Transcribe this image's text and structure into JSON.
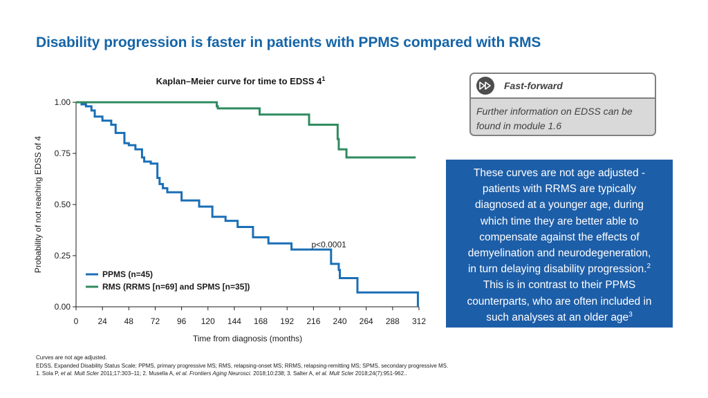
{
  "page_title": "Disability progression is faster in patients with PPMS compared with RMS",
  "chart_data": {
    "type": "line",
    "subtype": "kaplan-meier-step",
    "title": "Kaplan–Meier curve for time to EDSS 4",
    "title_superscript": "1",
    "xlabel": "Time from diagnosis (months)",
    "ylabel": "Probability of not reaching EDSS of 4",
    "xlim": [
      0,
      312
    ],
    "ylim": [
      0,
      1
    ],
    "x_ticks": [
      0,
      24,
      48,
      72,
      96,
      120,
      144,
      168,
      192,
      216,
      240,
      264,
      288,
      312
    ],
    "x_tick_labels": [
      "0",
      "24",
      "48",
      "72",
      "96",
      "120",
      "144",
      "168",
      "192",
      "216",
      "240",
      "264",
      "288",
      "312"
    ],
    "y_ticks": [
      0,
      0.25,
      0.5,
      0.75,
      1.0
    ],
    "y_tick_labels": [
      "0.00",
      "0.25",
      "0.50",
      "0.75",
      "1.00"
    ],
    "annotation": "p<0.0001",
    "annotation_at": [
      230,
      0.29
    ],
    "legend_position": "lower-left",
    "series": [
      {
        "name": "PPMS (n=45)",
        "color": "#1a6eb5",
        "x": [
          0,
          5,
          9,
          14,
          17,
          24,
          32,
          36,
          44,
          48,
          54,
          60,
          62,
          68,
          74,
          76,
          79,
          83,
          96,
          112,
          124,
          136,
          147,
          161,
          175,
          196,
          232,
          239,
          240,
          256,
          311
        ],
        "y": [
          1.0,
          0.99,
          0.98,
          0.96,
          0.93,
          0.91,
          0.89,
          0.85,
          0.8,
          0.79,
          0.77,
          0.73,
          0.71,
          0.7,
          0.63,
          0.6,
          0.58,
          0.56,
          0.52,
          0.49,
          0.44,
          0.42,
          0.39,
          0.34,
          0.31,
          0.28,
          0.21,
          0.18,
          0.14,
          0.07,
          0.0
        ]
      },
      {
        "name": "RMS (RRMS [n=69] and SPMS [n=35])",
        "color": "#2e8b5e",
        "x": [
          0,
          128,
          129,
          167,
          212,
          238,
          239,
          246,
          309
        ],
        "y": [
          1.0,
          0.98,
          0.97,
          0.94,
          0.89,
          0.82,
          0.77,
          0.73,
          0.73
        ]
      }
    ]
  },
  "fast_forward": {
    "icon": "fast-forward-icon",
    "title": "Fast-forward",
    "line1": "Further information on EDSS can be",
    "line2": "found in module 1.6"
  },
  "note": {
    "l1": "These curves are not age adjusted -",
    "l2": "patients with RRMS are typically",
    "l3": "diagnosed at a younger age, during",
    "l4": "which time they are better able to",
    "l5": "compensate against the effects of",
    "l6": "demyelination and neurodegeneration,",
    "l7": "in turn delaying disability progression.",
    "l7_sup": "2",
    "l8": "This is in contrast to their PPMS",
    "l9": "counterparts, who are often included in",
    "l10": "such analyses at an older age",
    "l10_sup": "3"
  },
  "footnotes": {
    "line1": "Curves are not age adjusted.",
    "line2": "EDSS, Expanded Disability Status Scale; PPMS, primary progressive MS; RMS, relapsing-onset MS; RRMS, relapsing-remitting MS; SPMS, secondary progressive MS.",
    "ref1_a": "1. Sola P, ",
    "ref1_b": "et al. Mult Scler",
    "ref1_c": " 2011;17:303–11; 2. Musella A, ",
    "ref2_b": "et al. Frontiers Aging Neurosci.",
    "ref2_c": " 2018;10:238; 3. Salter A, ",
    "ref3_b": "et al. Mult Scler",
    "ref3_c": " 2018;24(7):951-962.."
  },
  "colors": {
    "title_blue": "#1565a8",
    "note_bg": "#1d5ea8",
    "ppms": "#1a6eb5",
    "rms": "#2e8b5e"
  }
}
